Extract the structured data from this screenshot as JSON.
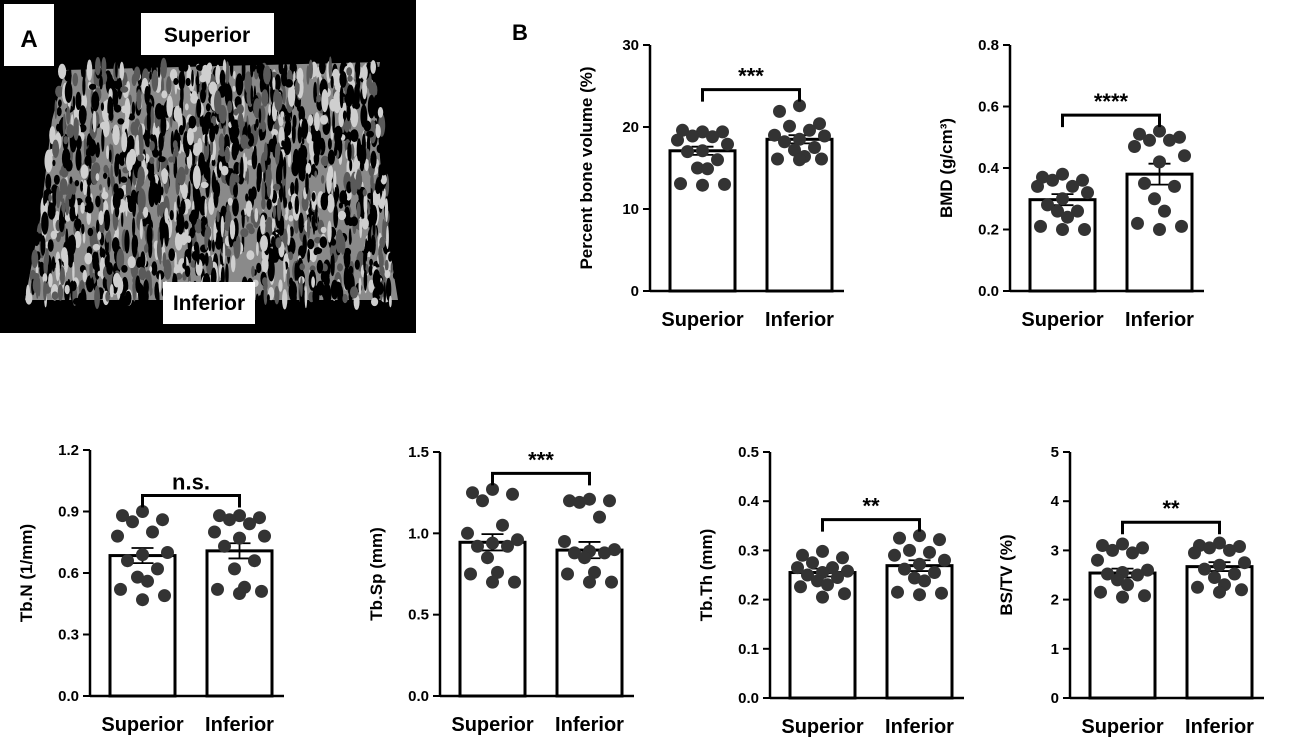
{
  "panel_a": {
    "label": "A",
    "top_label": "Superior",
    "bottom_label": "Inferior"
  },
  "panel_b": {
    "label": "B"
  },
  "chart_data": [
    {
      "type": "bar",
      "ylabel": "Percent bone volume  (%)",
      "ylim": [
        0,
        30
      ],
      "yticks": [
        "0",
        "10",
        "20",
        "30"
      ],
      "categories": [
        "Superior",
        "Inferior"
      ],
      "values": [
        17.1,
        18.5
      ],
      "sem": [
        0.5,
        0.5
      ],
      "significance": "***",
      "points": [
        [
          19.4,
          19.6,
          19.4,
          18.9,
          18.8,
          18.4,
          17.9,
          17.1,
          17.0,
          16.0,
          15.0,
          14.9,
          13.1,
          13.0,
          12.9
        ],
        [
          22.6,
          21.9,
          20.4,
          20.1,
          19.6,
          19.0,
          18.9,
          18.5,
          18.2,
          17.5,
          17.2,
          16.4,
          16.1,
          16.1,
          16.0
        ]
      ]
    },
    {
      "type": "bar",
      "ylabel": "BMD  (g/cm³)",
      "ylim": [
        0,
        0.8
      ],
      "yticks": [
        "0.0",
        "0.2",
        "0.4",
        "0.6",
        "0.8"
      ],
      "categories": [
        "Superior",
        "Inferior"
      ],
      "values": [
        0.297,
        0.38
      ],
      "sem": [
        0.018,
        0.034
      ],
      "significance": "****",
      "points": [
        [
          0.38,
          0.37,
          0.36,
          0.36,
          0.34,
          0.34,
          0.32,
          0.3,
          0.28,
          0.26,
          0.26,
          0.24,
          0.21,
          0.2,
          0.2
        ],
        [
          0.52,
          0.51,
          0.5,
          0.49,
          0.49,
          0.47,
          0.44,
          0.42,
          0.35,
          0.34,
          0.3,
          0.26,
          0.22,
          0.21,
          0.2
        ]
      ]
    },
    {
      "type": "bar",
      "ylabel": "Tb.N (1/mm)",
      "ylim": [
        0,
        1.2
      ],
      "yticks": [
        "0.0",
        "0.3",
        "0.6",
        "0.9",
        "1.2"
      ],
      "categories": [
        "Superior",
        "Inferior"
      ],
      "values": [
        0.685,
        0.708
      ],
      "sem": [
        0.037,
        0.037
      ],
      "significance": "n.s.",
      "points": [
        [
          0.9,
          0.88,
          0.86,
          0.85,
          0.8,
          0.78,
          0.7,
          0.69,
          0.66,
          0.62,
          0.58,
          0.56,
          0.52,
          0.49,
          0.47
        ],
        [
          0.88,
          0.88,
          0.87,
          0.86,
          0.84,
          0.8,
          0.78,
          0.77,
          0.73,
          0.66,
          0.62,
          0.53,
          0.52,
          0.51,
          0.5
        ]
      ]
    },
    {
      "type": "bar",
      "ylabel": "Tb.Sp (mm)",
      "ylim": [
        0,
        1.5
      ],
      "yticks": [
        "0.0",
        "0.5",
        "1.0",
        "1.5"
      ],
      "categories": [
        "Superior",
        "Inferior"
      ],
      "values": [
        0.945,
        0.897
      ],
      "sem": [
        0.05,
        0.05
      ],
      "significance": "***",
      "points": [
        [
          1.27,
          1.25,
          1.24,
          1.2,
          1.05,
          1.0,
          0.96,
          0.94,
          0.92,
          0.92,
          0.85,
          0.76,
          0.75,
          0.7,
          0.7
        ],
        [
          1.21,
          1.2,
          1.2,
          1.19,
          1.1,
          0.95,
          0.9,
          0.89,
          0.88,
          0.88,
          0.85,
          0.76,
          0.75,
          0.7,
          0.7
        ]
      ]
    },
    {
      "type": "bar",
      "ylabel": "Tb.Th (mm)",
      "ylim": [
        0,
        0.5
      ],
      "yticks": [
        "0.0",
        "0.1",
        "0.2",
        "0.3",
        "0.4",
        "0.5"
      ],
      "categories": [
        "Superior",
        "Inferior"
      ],
      "values": [
        0.255,
        0.269
      ],
      "sem": [
        0.008,
        0.011
      ],
      "significance": "**",
      "points": [
        [
          0.298,
          0.29,
          0.285,
          0.275,
          0.265,
          0.265,
          0.258,
          0.255,
          0.25,
          0.245,
          0.238,
          0.23,
          0.226,
          0.212,
          0.205
        ],
        [
          0.33,
          0.325,
          0.322,
          0.3,
          0.296,
          0.29,
          0.28,
          0.272,
          0.262,
          0.255,
          0.244,
          0.238,
          0.215,
          0.213,
          0.21
        ]
      ]
    },
    {
      "type": "bar",
      "ylabel": "BS/TV  (%)",
      "ylim": [
        0,
        5
      ],
      "yticks": [
        "0",
        "1",
        "2",
        "3",
        "4",
        "5"
      ],
      "categories": [
        "Superior",
        "Inferior"
      ],
      "values": [
        2.54,
        2.67
      ],
      "sem": [
        0.09,
        0.09
      ],
      "significance": "**",
      "points": [
        [
          3.13,
          3.1,
          3.05,
          3.0,
          2.95,
          2.8,
          2.6,
          2.55,
          2.52,
          2.5,
          2.4,
          2.3,
          2.15,
          2.08,
          2.05
        ],
        [
          3.15,
          3.1,
          3.08,
          3.05,
          3.0,
          2.95,
          2.75,
          2.7,
          2.62,
          2.52,
          2.45,
          2.3,
          2.25,
          2.2,
          2.15
        ]
      ]
    }
  ]
}
